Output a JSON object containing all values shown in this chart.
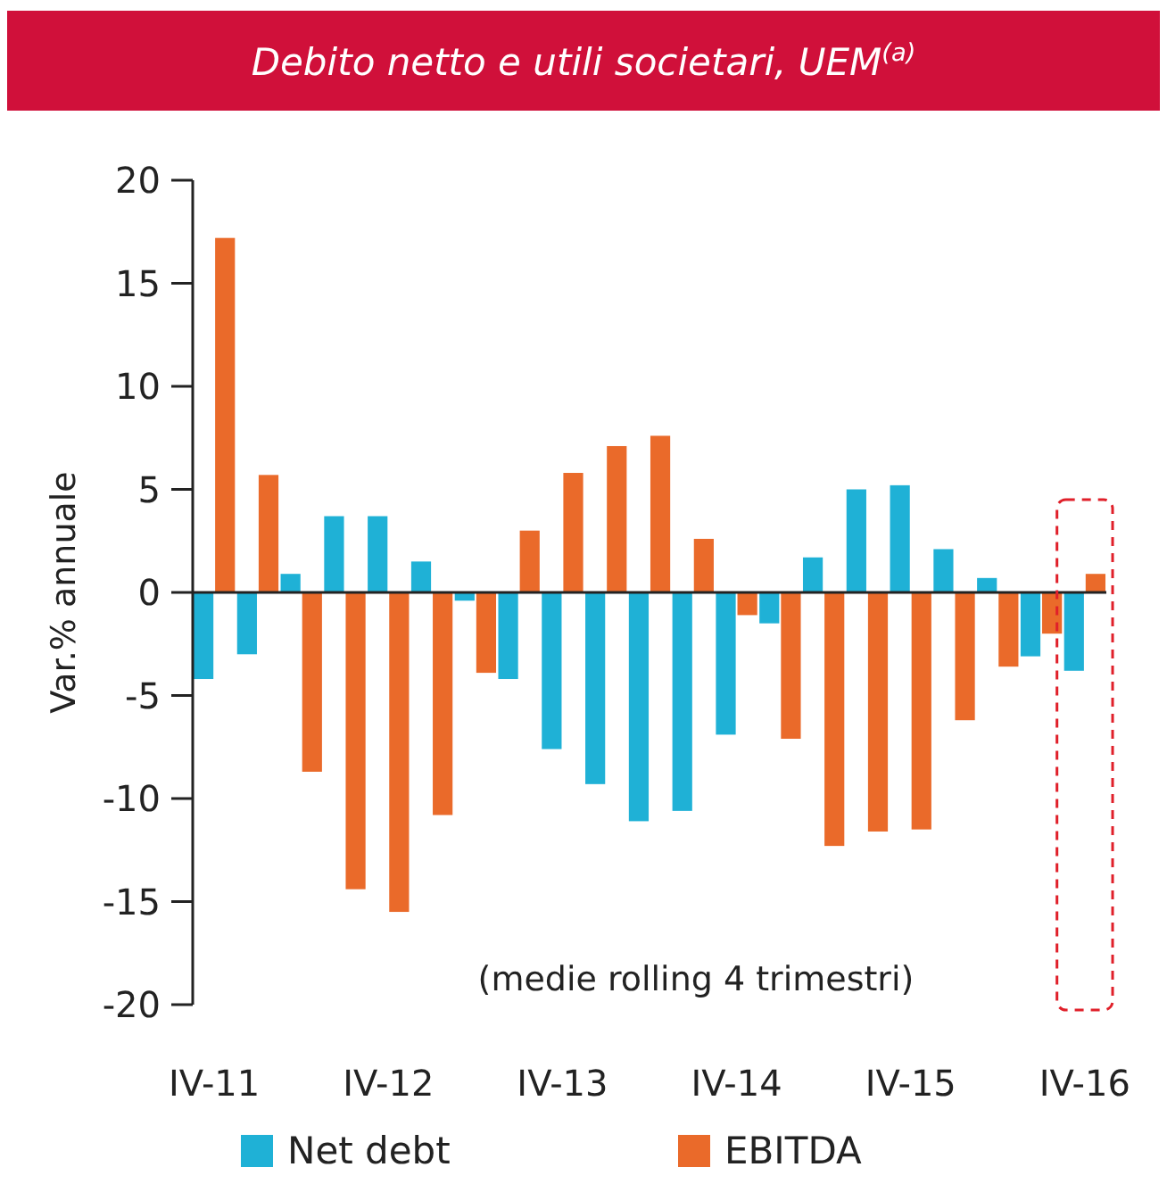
{
  "chart_data": {
    "type": "bar",
    "title": "Debito netto e utili societari, UEM$^{(a)}$",
    "ylabel": "Var.% annuale",
    "categories": [
      "IV-11",
      null,
      null,
      null,
      "IV-12",
      null,
      null,
      null,
      "IV-13",
      null,
      null,
      null,
      "IV-14",
      null,
      null,
      null,
      "IV-15",
      null,
      null,
      null,
      "IV-16"
    ],
    "series": [
      {
        "name": "Net debt",
        "color": "#1fb1d6",
        "values": [
          -4.2,
          -3.0,
          0.9,
          3.7,
          3.7,
          1.5,
          -0.4,
          -4.2,
          -7.6,
          -9.3,
          -11.1,
          -10.6,
          -6.9,
          -1.5,
          1.7,
          5.0,
          5.2,
          2.1,
          0.7,
          -3.1,
          -3.8
        ]
      },
      {
        "name": "EBITDA",
        "color": "#ea6a2a",
        "values": [
          17.2,
          5.7,
          -8.7,
          -14.4,
          -15.5,
          -10.8,
          -3.9,
          3.0,
          5.8,
          7.1,
          7.6,
          2.6,
          -1.1,
          -7.1,
          -12.3,
          -11.6,
          -11.5,
          -6.2,
          -3.6,
          -2.0,
          0.9
        ]
      }
    ],
    "ylim": [
      -20,
      20
    ],
    "yticks": [
      -20,
      -15,
      -10,
      -5,
      0,
      5,
      10,
      15,
      20
    ],
    "legend": "bottom",
    "annotations": [
      "(medie rolling 4 trimestri)"
    ]
  }
}
